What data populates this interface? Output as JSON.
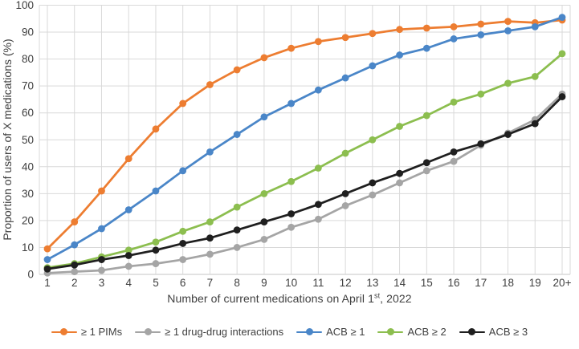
{
  "chart_data": {
    "type": "line",
    "title": "",
    "xlabel_parts": {
      "before": "Number of current medications on April 1",
      "sup": "st",
      "after": ", 2022"
    },
    "ylabel": "Proportion of users of X medications (%)",
    "categories": [
      "1",
      "2",
      "3",
      "4",
      "5",
      "6",
      "7",
      "8",
      "9",
      "10",
      "11",
      "12",
      "13",
      "14",
      "15",
      "16",
      "17",
      "18",
      "19",
      "20+"
    ],
    "yticks": [
      0,
      10,
      20,
      30,
      40,
      50,
      60,
      70,
      80,
      90,
      100
    ],
    "ylim": [
      0,
      100
    ],
    "grid": true,
    "legend_position": "bottom",
    "marker": "circle",
    "series": [
      {
        "name": "≥ 1 PIMs",
        "key": "pims",
        "color": "#ED7D31",
        "values": [
          9.5,
          19.5,
          31,
          43,
          54,
          63.5,
          70.5,
          76,
          80.5,
          84,
          86.5,
          88,
          89.5,
          91,
          91.5,
          92,
          93,
          94,
          93.5,
          94.5
        ]
      },
      {
        "name": "≥ 1 drug-drug interactions",
        "key": "ddi",
        "color": "#A5A5A5",
        "values": [
          0.5,
          1,
          1.5,
          3,
          4,
          5.5,
          7.5,
          10,
          13,
          17.5,
          20.5,
          25.5,
          29.5,
          34,
          38.5,
          42,
          48,
          52.5,
          57.5,
          67
        ]
      },
      {
        "name": "ACB ≥ 1",
        "key": "acb-ge-1",
        "color": "#4A86C8",
        "values": [
          5.5,
          11,
          17,
          24,
          31,
          38.5,
          45.5,
          52,
          58.5,
          63.5,
          68.5,
          73,
          77.5,
          81.5,
          84,
          87.5,
          89,
          90.5,
          92,
          95.5
        ]
      },
      {
        "name": "ACB ≥ 2",
        "key": "acb-ge-2",
        "color": "#8CBE4F",
        "values": [
          2.5,
          4,
          6.5,
          9,
          12,
          16,
          19.5,
          25,
          30,
          34.5,
          39.5,
          45,
          50,
          55,
          59,
          64,
          67,
          71,
          73.5,
          82
        ]
      },
      {
        "name": "ACB ≥ 3",
        "key": "acb-ge-3",
        "color": "#1F1F1F",
        "values": [
          2,
          3.5,
          5.5,
          7,
          9,
          11.5,
          13.5,
          16.5,
          19.5,
          22.5,
          26,
          30,
          34,
          37.5,
          41.5,
          45.5,
          48.5,
          52,
          56,
          66
        ]
      }
    ],
    "colors": {
      "grid": "#D9D9D9",
      "axis": "#C6C6C6",
      "text": "#3F3F3F"
    }
  }
}
